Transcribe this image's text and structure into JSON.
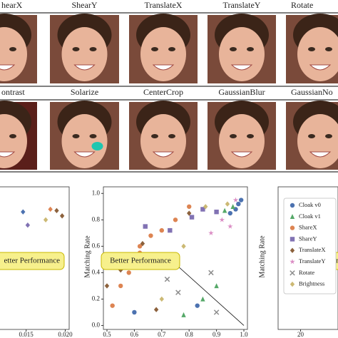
{
  "figure": {
    "image_rows": [
      {
        "labels": [
          "hearX",
          "ShearY",
          "TranslateX",
          "TranslateY",
          "Rotate"
        ]
      },
      {
        "labels": [
          "ontrast",
          "Solarize",
          "CenterCrop",
          "GaussianBlur",
          "GaussianNo"
        ]
      }
    ]
  },
  "chart_data": [
    {
      "type": "scatter",
      "annotation": "etter Performance",
      "xlim": [
        0.0112,
        0.0205
      ],
      "ylim": [
        -0.03,
        1.05
      ],
      "xticks": [
        0.015,
        {
          "value": 0.02,
          "label": "0.020"
        }
      ],
      "x": [
        0.0146,
        0.0189,
        0.0181,
        0.0152,
        0.0196,
        0.0175
      ],
      "values": [
        0.86,
        0.87,
        0.88,
        0.76,
        0.83,
        0.8
      ],
      "colors": [
        "#4c72b0",
        "#8c613c",
        "#dd8452",
        "#8172b3",
        "#8c613c",
        "#ccb974"
      ]
    },
    {
      "type": "scatter",
      "y_label": "Matching Rate",
      "annotation": "Better Performance",
      "xlim": [
        0.487,
        1.013
      ],
      "ylim": [
        -0.03,
        1.05
      ],
      "xticks": [
        0.5,
        0.6,
        0.7,
        0.8,
        0.9,
        {
          "value": 1,
          "label": "1.0"
        }
      ],
      "yticks": [
        {
          "value": 0,
          "label": "0.0"
        },
        0.2,
        0.4,
        0.6,
        0.8,
        {
          "value": 1,
          "label": "1.0"
        }
      ],
      "legend": "upper right",
      "series": [
        {
          "name": "Cloak v0",
          "color": "#4c72b0",
          "marker": "circle",
          "x": [
            0.98,
            0.97,
            0.99,
            0.95,
            0.6,
            0.83
          ],
          "values": [
            0.92,
            0.88,
            0.95,
            0.85,
            0.1,
            0.15
          ]
        },
        {
          "name": "Cloak v1",
          "color": "#55a868",
          "marker": "triangle",
          "x": [
            0.96,
            0.9,
            0.85,
            0.78,
            0.93
          ],
          "values": [
            0.9,
            0.3,
            0.2,
            0.08,
            0.87
          ]
        },
        {
          "name": "ShareX",
          "color": "#dd8452",
          "marker": "circle",
          "x": [
            0.52,
            0.55,
            0.58,
            0.6,
            0.62,
            0.66,
            0.7,
            0.75,
            0.8,
            0.62
          ],
          "values": [
            0.15,
            0.3,
            0.4,
            0.5,
            0.6,
            0.68,
            0.72,
            0.8,
            0.9,
            0.55
          ]
        },
        {
          "name": "ShareY",
          "color": "#8172b3",
          "marker": "square",
          "x": [
            0.64,
            0.73,
            0.81,
            0.85,
            0.9
          ],
          "values": [
            0.75,
            0.72,
            0.82,
            0.88,
            0.86
          ]
        },
        {
          "name": "TranslateX",
          "color": "#8c613c",
          "marker": "diamond",
          "x": [
            0.5,
            0.55,
            0.59,
            0.63,
            0.68,
            0.8
          ],
          "values": [
            0.3,
            0.42,
            0.52,
            0.62,
            0.12,
            0.85
          ]
        },
        {
          "name": "TranslateY",
          "color": "#da8bc3",
          "marker": "star",
          "x": [
            0.92,
            0.95,
            0.88,
            0.97
          ],
          "values": [
            0.8,
            0.75,
            0.7,
            0.95
          ]
        },
        {
          "name": "Rotate",
          "color": "#8c8c8c",
          "marker": "x",
          "x": [
            0.76,
            0.88,
            0.9,
            0.72
          ],
          "values": [
            0.25,
            0.4,
            0.1,
            0.35
          ]
        },
        {
          "name": "Brightness",
          "color": "#ccb974",
          "marker": "diamond",
          "x": [
            0.86,
            0.7,
            0.78,
            0.94
          ],
          "values": [
            0.9,
            0.2,
            0.6,
            0.92
          ]
        }
      ]
    },
    {
      "type": "scatter",
      "y_label": "Matching Rate",
      "annotation": "Better Performance",
      "xlim": [
        14,
        30
      ],
      "xticks": [
        20
      ]
    }
  ]
}
